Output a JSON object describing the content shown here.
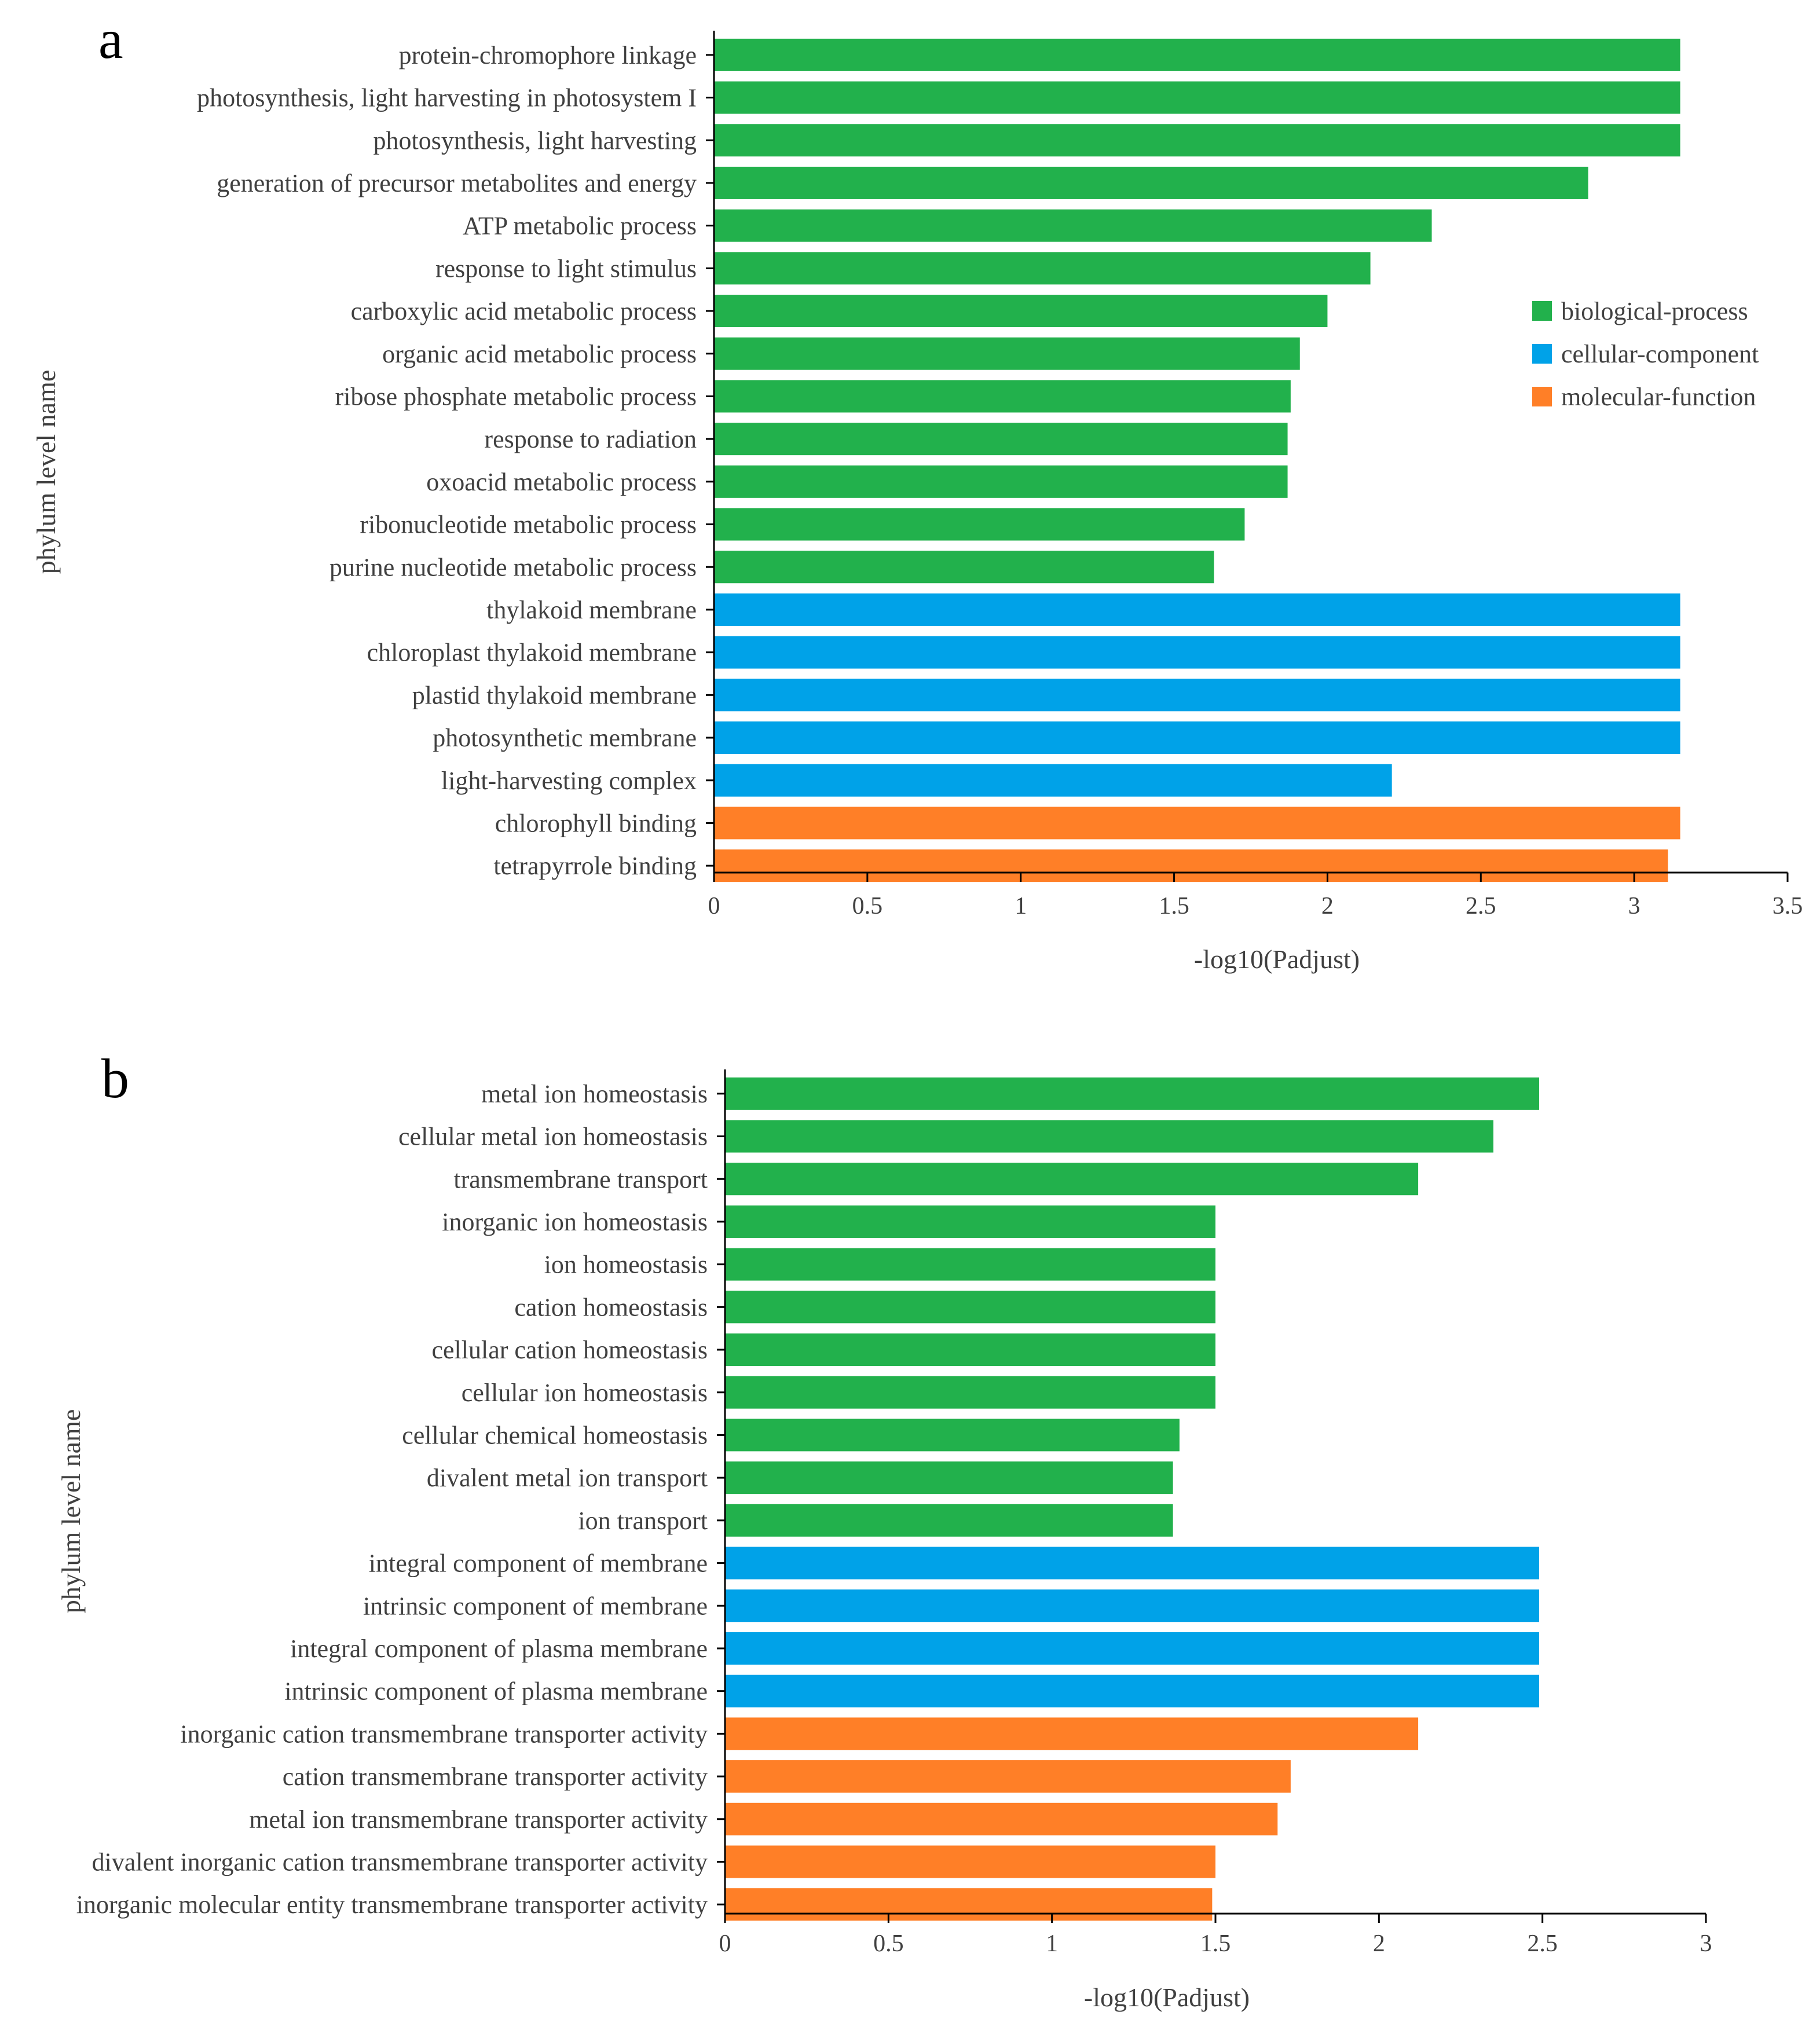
{
  "colors": {
    "biological-process": "#22b14c",
    "cellular-component": "#00a2e8",
    "molecular-function": "#ff7f27"
  },
  "legend": [
    "biological-process",
    "cellular-component",
    "molecular-function"
  ],
  "chart_data": [
    {
      "panel": "a",
      "type": "bar",
      "orientation": "horizontal",
      "xlabel": "-log10(Padjust)",
      "ylabel": "phylum level name",
      "xlim": [
        0,
        3.5
      ],
      "xticks": [
        "0",
        "0.5",
        "1",
        "1.5",
        "2",
        "2.5",
        "3",
        "3.5"
      ],
      "legend_position": "right",
      "categories": [
        "protein-chromophore linkage",
        "photosynthesis, light harvesting in photosystem I",
        "photosynthesis, light harvesting",
        "generation of precursor metabolites and energy",
        "ATP metabolic process",
        "response to light stimulus",
        "carboxylic acid metabolic process",
        "organic acid metabolic process",
        "ribose phosphate metabolic process",
        "response to radiation",
        "oxoacid metabolic process",
        "ribonucleotide metabolic process",
        "purine nucleotide metabolic process",
        "thylakoid membrane",
        "chloroplast thylakoid membrane",
        "plastid thylakoid membrane",
        "photosynthetic membrane",
        "light-harvesting complex",
        "chlorophyll binding",
        "tetrapyrrole binding"
      ],
      "values": [
        3.15,
        3.15,
        3.15,
        2.85,
        2.34,
        2.14,
        2.0,
        1.91,
        1.88,
        1.87,
        1.87,
        1.73,
        1.63,
        3.15,
        3.15,
        3.15,
        3.15,
        2.21,
        3.15,
        3.11
      ],
      "groups": [
        "biological-process",
        "biological-process",
        "biological-process",
        "biological-process",
        "biological-process",
        "biological-process",
        "biological-process",
        "biological-process",
        "biological-process",
        "biological-process",
        "biological-process",
        "biological-process",
        "biological-process",
        "cellular-component",
        "cellular-component",
        "cellular-component",
        "cellular-component",
        "cellular-component",
        "molecular-function",
        "molecular-function"
      ]
    },
    {
      "panel": "b",
      "type": "bar",
      "orientation": "horizontal",
      "xlabel": "-log10(Padjust)",
      "ylabel": "phylum level name",
      "xlim": [
        0,
        3
      ],
      "xticks": [
        "0",
        "0.5",
        "1",
        "1.5",
        "2",
        "2.5",
        "3"
      ],
      "categories": [
        "metal ion homeostasis",
        "cellular metal ion homeostasis",
        "transmembrane transport",
        "inorganic ion homeostasis",
        "ion homeostasis",
        "cation homeostasis",
        "cellular cation homeostasis",
        "cellular ion homeostasis",
        "cellular chemical homeostasis",
        "divalent metal ion transport",
        "ion transport",
        "integral component of membrane",
        "intrinsic component of membrane",
        "integral component of plasma membrane",
        "intrinsic component of plasma membrane",
        "inorganic cation transmembrane transporter activity",
        "cation transmembrane transporter activity",
        "metal ion transmembrane transporter activity",
        "divalent inorganic cation transmembrane transporter activity",
        "inorganic molecular entity transmembrane transporter activity"
      ],
      "values": [
        2.49,
        2.35,
        2.12,
        1.5,
        1.5,
        1.5,
        1.5,
        1.5,
        1.39,
        1.37,
        1.37,
        2.49,
        2.49,
        2.49,
        2.49,
        2.12,
        1.73,
        1.69,
        1.5,
        1.49
      ],
      "groups": [
        "biological-process",
        "biological-process",
        "biological-process",
        "biological-process",
        "biological-process",
        "biological-process",
        "biological-process",
        "biological-process",
        "biological-process",
        "biological-process",
        "biological-process",
        "cellular-component",
        "cellular-component",
        "cellular-component",
        "cellular-component",
        "molecular-function",
        "molecular-function",
        "molecular-function",
        "molecular-function",
        "molecular-function"
      ]
    }
  ]
}
